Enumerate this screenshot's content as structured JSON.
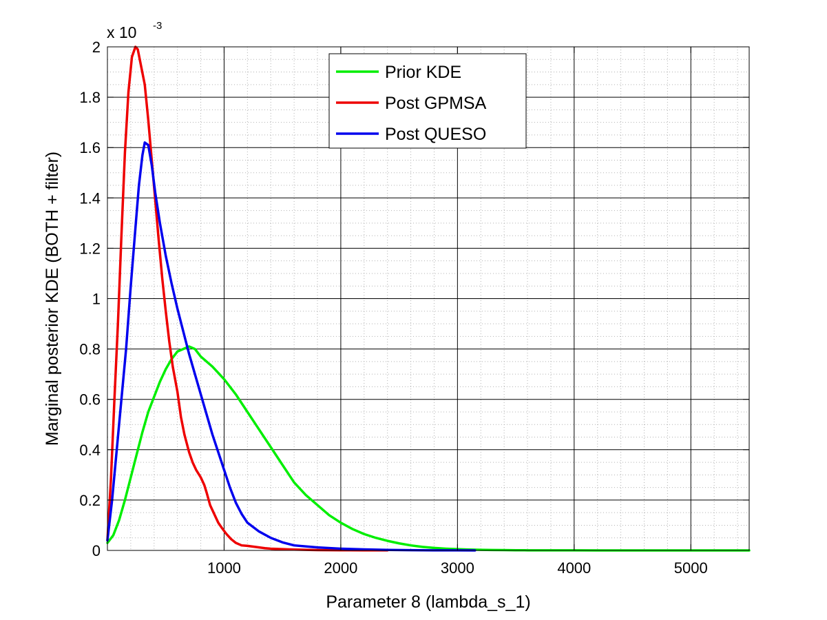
{
  "chart_data": {
    "type": "line",
    "xlabel": "Parameter 8 (lambda_s_1)",
    "ylabel": "Marginal posterior KDE (BOTH + filter)",
    "xlim": [
      0,
      5500
    ],
    "ylim": [
      0,
      0.002
    ],
    "x_ticks": [
      1000,
      2000,
      3000,
      4000,
      5000
    ],
    "x_tick_labels": [
      "1000",
      "2000",
      "3000",
      "4000",
      "5000"
    ],
    "y_ticks": [
      0,
      0.0002,
      0.0004,
      0.0006,
      0.0008,
      0.001,
      0.0012,
      0.0014,
      0.0016,
      0.0018,
      0.002
    ],
    "y_tick_labels": [
      "0",
      "0.2",
      "0.4",
      "0.6",
      "0.8",
      "1",
      "1.2",
      "1.4",
      "1.6",
      "1.8",
      "2"
    ],
    "y_multiplier": {
      "base": "x 10",
      "exponent": "-3"
    },
    "grid": true,
    "legend_position": "top-center",
    "series": [
      {
        "name": "Prior KDE",
        "color": "#00ee00",
        "x": [
          0,
          50,
          100,
          150,
          200,
          250,
          300,
          350,
          400,
          450,
          500,
          550,
          600,
          650,
          700,
          750,
          800,
          900,
          1000,
          1100,
          1200,
          1300,
          1400,
          1500,
          1600,
          1700,
          1800,
          1900,
          2000,
          2100,
          2200,
          2300,
          2400,
          2500,
          2600,
          2700,
          2800,
          2900,
          3000,
          3100,
          3200,
          3300,
          3400,
          3500,
          3600,
          3800,
          4000,
          4200,
          4500,
          5000,
          5500
        ],
        "y": [
          3e-05,
          6e-05,
          0.00012,
          0.0002,
          0.00029,
          0.00038,
          0.00047,
          0.00055,
          0.00061,
          0.00067,
          0.00072,
          0.00076,
          0.00079,
          0.0008,
          0.00081,
          0.0008,
          0.00077,
          0.00073,
          0.00068,
          0.00062,
          0.00055,
          0.00048,
          0.00041,
          0.00034,
          0.00027,
          0.00022,
          0.00018,
          0.00014,
          0.00011,
          8.5e-05,
          6.5e-05,
          5e-05,
          3.8e-05,
          2.8e-05,
          2e-05,
          1.4e-05,
          1e-05,
          7e-06,
          5e-06,
          3.5e-06,
          2.5e-06,
          1.8e-06,
          1.2e-06,
          8e-07,
          5e-07,
          3e-07,
          2e-07,
          1e-07,
          5e-08,
          2e-08,
          1e-08
        ]
      },
      {
        "name": "Post GPMSA",
        "color": "#ee0000",
        "x": [
          0,
          30,
          60,
          90,
          120,
          150,
          180,
          210,
          240,
          260,
          290,
          320,
          350,
          380,
          410,
          440,
          470,
          500,
          530,
          560,
          600,
          630,
          660,
          700,
          730,
          760,
          800,
          830,
          850,
          880,
          920,
          950,
          980,
          1020,
          1060,
          1100,
          1150,
          1200,
          1250,
          1300,
          1350,
          1400,
          1500,
          1600,
          1700,
          1800,
          2000,
          2200,
          2400
        ],
        "y": [
          4e-05,
          0.00028,
          0.0006,
          0.0009,
          0.00125,
          0.00158,
          0.00182,
          0.00196,
          0.002,
          0.00199,
          0.00192,
          0.00185,
          0.00171,
          0.00155,
          0.00139,
          0.00123,
          0.00108,
          0.00095,
          0.00083,
          0.00073,
          0.00063,
          0.00053,
          0.00046,
          0.00039,
          0.00035,
          0.00032,
          0.00029,
          0.00026,
          0.00023,
          0.00018,
          0.00014,
          0.00011,
          9e-05,
          6.5e-05,
          4.5e-05,
          3e-05,
          2e-05,
          1.8e-05,
          1.5e-05,
          1.2e-05,
          9e-06,
          7e-06,
          5e-06,
          3.5e-06,
          2.5e-06,
          1.5e-06,
          8e-07,
          4e-07,
          2e-07
        ]
      },
      {
        "name": "Post QUESO",
        "color": "#0000ee",
        "x": [
          0,
          40,
          80,
          120,
          160,
          200,
          240,
          270,
          300,
          320,
          350,
          380,
          410,
          450,
          500,
          550,
          600,
          650,
          700,
          750,
          800,
          850,
          900,
          950,
          1000,
          1050,
          1100,
          1150,
          1200,
          1300,
          1400,
          1500,
          1600,
          1800,
          2000,
          2200,
          2400,
          2600,
          2800,
          3000,
          3150
        ],
        "y": [
          4e-05,
          0.0002,
          0.0004,
          0.0006,
          0.0008,
          0.00105,
          0.00128,
          0.00145,
          0.00157,
          0.00162,
          0.00161,
          0.00153,
          0.00142,
          0.0013,
          0.00117,
          0.00106,
          0.00096,
          0.00087,
          0.00078,
          0.0007,
          0.00062,
          0.00054,
          0.00046,
          0.00039,
          0.00032,
          0.00025,
          0.00019,
          0.000145,
          0.00011,
          7.5e-05,
          5e-05,
          3.2e-05,
          2e-05,
          1.2e-05,
          7e-06,
          4e-06,
          2e-06,
          1e-06,
          5e-07,
          2e-07,
          1e-07
        ]
      }
    ]
  }
}
